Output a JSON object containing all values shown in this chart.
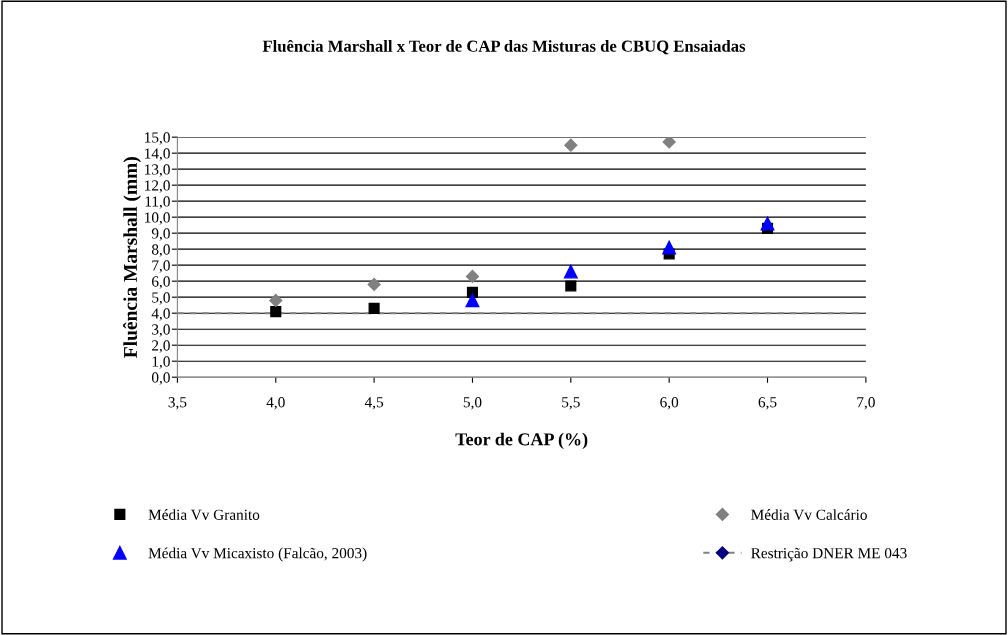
{
  "chart_data": {
    "type": "scatter",
    "title": "Fluência Marshall x Teor de CAP das Misturas de CBUQ Ensaiadas",
    "xlabel": "Teor de CAP (%)",
    "ylabel": "Fluência Marshall (mm)",
    "xlim": [
      3.5,
      7.0
    ],
    "ylim": [
      0.0,
      15.0
    ],
    "xticks": [
      {
        "value": 3.5,
        "label": "3,5"
      },
      {
        "value": 4.0,
        "label": "4,0"
      },
      {
        "value": 4.5,
        "label": "4,5"
      },
      {
        "value": 5.0,
        "label": "5,0"
      },
      {
        "value": 5.5,
        "label": "5,5"
      },
      {
        "value": 6.0,
        "label": "6,0"
      },
      {
        "value": 6.5,
        "label": "6,5"
      },
      {
        "value": 7.0,
        "label": "7,0"
      }
    ],
    "yticks": [
      {
        "value": 0,
        "label": "0,0"
      },
      {
        "value": 1,
        "label": "1,0"
      },
      {
        "value": 2,
        "label": "2,0"
      },
      {
        "value": 3,
        "label": "3,0"
      },
      {
        "value": 4,
        "label": "4,0"
      },
      {
        "value": 5,
        "label": "5,0"
      },
      {
        "value": 6,
        "label": "6,0"
      },
      {
        "value": 7,
        "label": "7,0"
      },
      {
        "value": 8,
        "label": "8,0"
      },
      {
        "value": 9,
        "label": "9,0"
      },
      {
        "value": 10,
        "label": "10,0"
      },
      {
        "value": 11,
        "label": "11,0"
      },
      {
        "value": 12,
        "label": "12,0"
      },
      {
        "value": 13,
        "label": "13,0"
      },
      {
        "value": 14,
        "label": "14,0"
      },
      {
        "value": 15,
        "label": "15,0"
      }
    ],
    "grid": "y",
    "legend": "bottom",
    "series": [
      {
        "name": "Média Vv Granito",
        "color": "#000000",
        "marker": "square",
        "x": [
          4.0,
          4.5,
          5.0,
          5.5,
          6.0,
          6.5
        ],
        "values": [
          4.1,
          4.3,
          5.3,
          5.7,
          7.7,
          9.3
        ]
      },
      {
        "name": "Média Vv Calcário",
        "color": "#808080",
        "marker": "diamond",
        "x": [
          4.0,
          4.5,
          5.0,
          5.5,
          6.0
        ],
        "values": [
          4.8,
          5.8,
          6.3,
          14.5,
          14.7
        ]
      },
      {
        "name": "Média Vv Micaxisto (Falcão, 2003)",
        "color": "#0000ff",
        "marker": "triangle",
        "x": [
          5.0,
          5.5,
          6.0,
          6.5
        ],
        "values": [
          4.8,
          6.6,
          8.1,
          9.6
        ]
      }
    ],
    "ref_lines": [
      {
        "axis": "y",
        "value": 4.0,
        "label": "Restrição DNER ME 043",
        "color": "#808080",
        "line_style": "dashed"
      }
    ]
  }
}
